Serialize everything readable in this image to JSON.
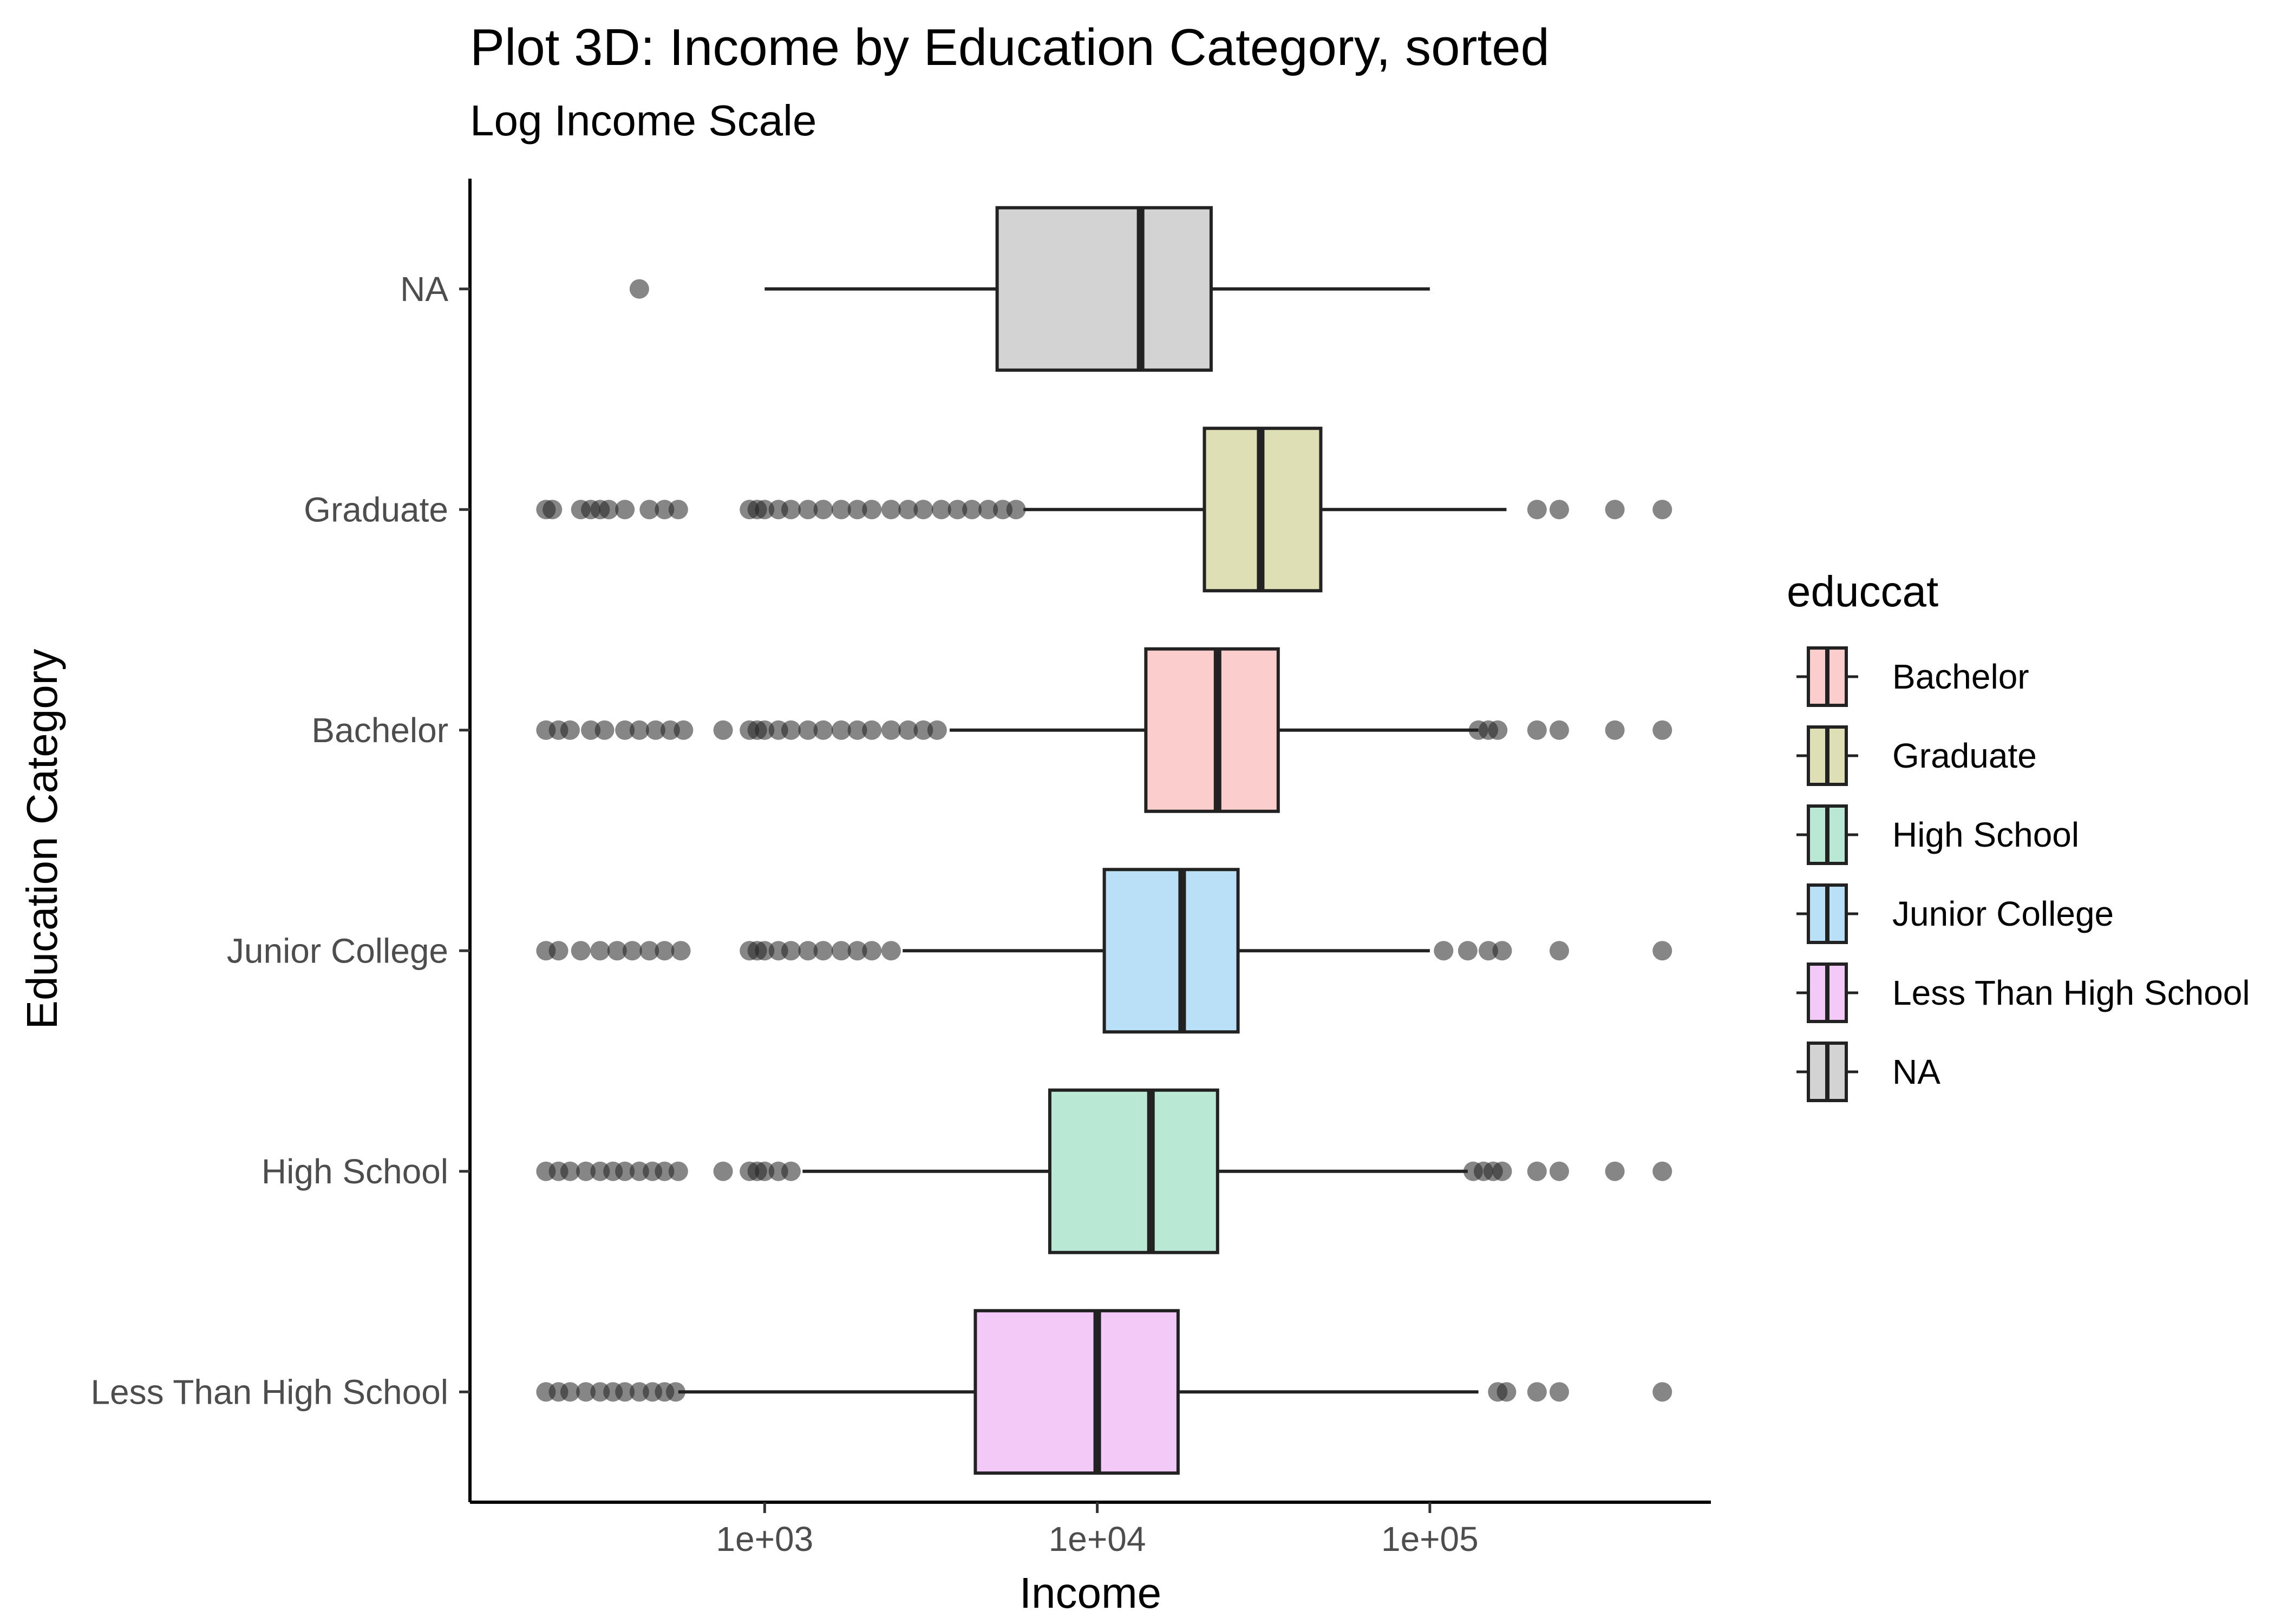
{
  "chart_data": {
    "type": "boxplot",
    "orientation": "horizontal",
    "title": "Plot 3D: Income by Education Category, sorted",
    "subtitle": "Log Income Scale",
    "xlabel": "Income",
    "ylabel": "Education Category",
    "x_scale": "log10",
    "xlim": [
      130,
      700000
    ],
    "x_ticks": [
      {
        "value": 1000,
        "label": "1e+03"
      },
      {
        "value": 10000,
        "label": "1e+04"
      },
      {
        "value": 100000,
        "label": "1e+05"
      }
    ],
    "grid": false,
    "legend": {
      "title": "educcat",
      "position": "right",
      "entries": [
        "Bachelor",
        "Graduate",
        "High School",
        "Junior College",
        "Less Than High School",
        "NA"
      ]
    },
    "categories_top_to_bottom": [
      "NA",
      "Graduate",
      "Bachelor",
      "Junior College",
      "High School",
      "Less Than High School"
    ],
    "series": [
      {
        "name": "NA",
        "color": "#d3d3d3",
        "whisker_low": 1000,
        "q1": 5000,
        "median": 13500,
        "q3": 22000,
        "whisker_high": 100000,
        "outliers": [
          420
        ]
      },
      {
        "name": "Graduate",
        "color": "#dedfb4",
        "whisker_low": 6000,
        "q1": 21000,
        "median": 31000,
        "q3": 47000,
        "whisker_high": 170000,
        "outliers": [
          220,
          230,
          280,
          300,
          320,
          340,
          380,
          450,
          500,
          550,
          900,
          950,
          1000,
          1100,
          1200,
          1350,
          1500,
          1700,
          1900,
          2100,
          2400,
          2700,
          3000,
          3400,
          3800,
          4200,
          4700,
          5200,
          5700,
          210000,
          245000,
          360000,
          500000
        ]
      },
      {
        "name": "Bachelor",
        "color": "#fbcdcd",
        "whisker_low": 3600,
        "q1": 14000,
        "median": 23000,
        "q3": 35000,
        "whisker_high": 140000,
        "outliers": [
          220,
          240,
          260,
          300,
          330,
          380,
          420,
          470,
          520,
          570,
          750,
          900,
          950,
          1000,
          1100,
          1200,
          1350,
          1500,
          1700,
          1900,
          2100,
          2400,
          2700,
          3000,
          3300,
          140000,
          150000,
          160000,
          210000,
          245000,
          360000,
          500000
        ]
      },
      {
        "name": "Junior College",
        "color": "#bae0f8",
        "whisker_low": 2600,
        "q1": 10500,
        "median": 18000,
        "q3": 26500,
        "whisker_high": 100000,
        "outliers": [
          220,
          240,
          280,
          320,
          360,
          400,
          450,
          500,
          560,
          900,
          950,
          1000,
          1100,
          1200,
          1350,
          1500,
          1700,
          1900,
          2100,
          2400,
          110000,
          130000,
          150000,
          165000,
          245000,
          500000
        ]
      },
      {
        "name": "High School",
        "color": "#b9e8d4",
        "whisker_low": 1300,
        "q1": 7200,
        "median": 14500,
        "q3": 23000,
        "whisker_high": 130000,
        "outliers": [
          220,
          240,
          260,
          290,
          320,
          350,
          380,
          420,
          460,
          500,
          550,
          750,
          900,
          950,
          1000,
          1100,
          1200,
          135000,
          145000,
          155000,
          165000,
          210000,
          245000,
          360000,
          500000
        ]
      },
      {
        "name": "Less Than High School",
        "color": "#f3c9f8",
        "whisker_low": 550,
        "q1": 4300,
        "median": 10000,
        "q3": 17500,
        "whisker_high": 140000,
        "outliers": [
          220,
          240,
          260,
          290,
          320,
          350,
          380,
          420,
          460,
          500,
          540,
          160000,
          170000,
          210000,
          245000,
          500000
        ]
      }
    ]
  }
}
